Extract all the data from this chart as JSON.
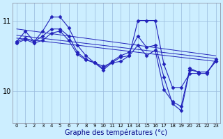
{
  "xlabel": "Graphe des températures (°c)",
  "background_color": "#cceeff",
  "line_color": "#2222bb",
  "grid_color": "#99bbdd",
  "x_ticks": [
    0,
    1,
    2,
    3,
    4,
    5,
    6,
    7,
    8,
    9,
    10,
    11,
    12,
    13,
    14,
    15,
    16,
    17,
    18,
    19,
    20,
    21,
    22,
    23
  ],
  "ylim": [
    9.55,
    11.25
  ],
  "yticks": [
    10,
    11
  ],
  "series1": [
    10.7,
    10.85,
    10.7,
    10.85,
    11.05,
    11.05,
    10.9,
    10.65,
    10.5,
    10.4,
    10.35,
    10.4,
    10.42,
    10.5,
    11.0,
    11.0,
    11.0,
    10.38,
    10.05,
    10.05,
    10.25,
    10.25,
    10.25,
    10.45
  ],
  "series2": [
    10.7,
    10.75,
    10.7,
    10.78,
    10.88,
    10.88,
    10.78,
    10.55,
    10.45,
    10.4,
    10.32,
    10.42,
    10.5,
    10.55,
    10.78,
    10.62,
    10.65,
    10.2,
    9.82,
    9.72,
    10.3,
    10.27,
    10.27,
    10.42
  ],
  "series3": [
    10.68,
    10.73,
    10.68,
    10.72,
    10.82,
    10.85,
    10.72,
    10.52,
    10.44,
    10.4,
    10.3,
    10.4,
    10.48,
    10.5,
    10.65,
    10.5,
    10.58,
    10.02,
    9.85,
    9.78,
    10.32,
    10.27,
    10.27,
    10.42
  ],
  "trend1_y": [
    10.88,
    10.5
  ],
  "trend2_y": [
    10.79,
    10.46
  ],
  "trend3_y": [
    10.75,
    10.42
  ]
}
